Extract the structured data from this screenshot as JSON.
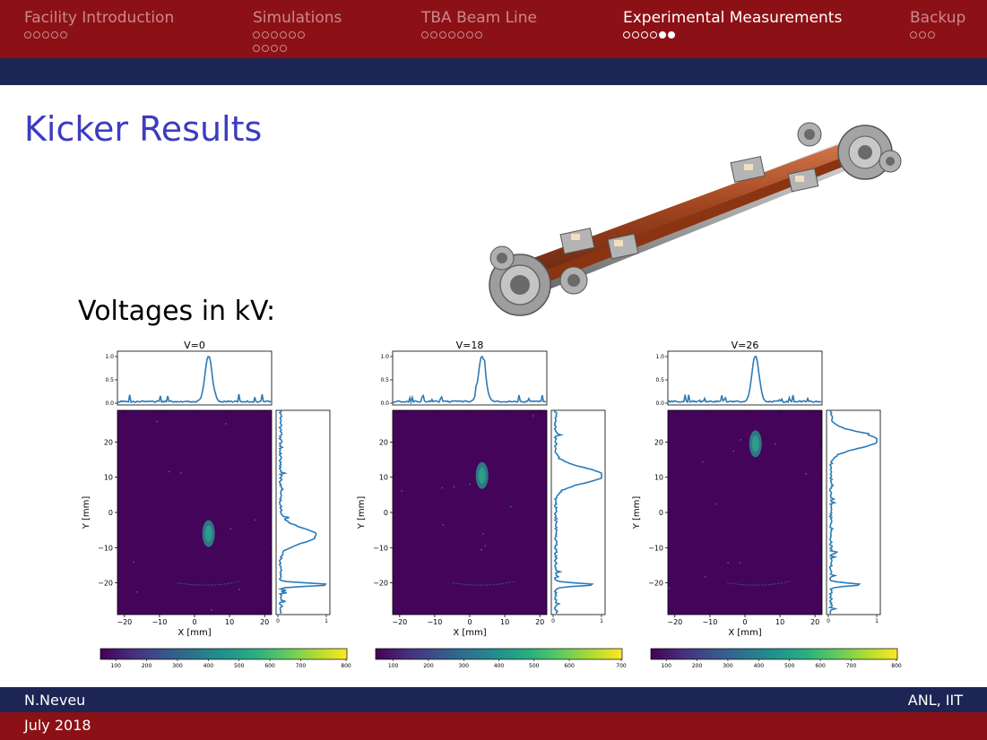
{
  "nav": [
    {
      "label": "Facility Introduction",
      "dots": [
        0,
        0,
        0,
        0,
        0
      ]
    },
    {
      "label": "Simulations",
      "dots": [
        0,
        0,
        0,
        0,
        0,
        0
      ],
      "dots2": [
        0,
        0,
        0,
        0
      ]
    },
    {
      "label": "TBA Beam Line",
      "dots": [
        0,
        0,
        0,
        0,
        0,
        0,
        0
      ]
    },
    {
      "label": "Experimental Measurements",
      "dots": [
        0,
        0,
        0,
        0,
        1,
        1
      ],
      "active": true
    },
    {
      "label": "Backup",
      "dots": [
        0,
        0,
        0
      ]
    }
  ],
  "slide_title": "Kicker Results",
  "voltages_label": "Voltages in kV:",
  "footer": {
    "author": "N.Neveu",
    "affiliation": "ANL, IIT",
    "date": "July 2018"
  },
  "colors": {
    "red": "#8c1116",
    "navy": "#1c2554",
    "title": "#3b3dbf",
    "trace": "#2b7bb9"
  },
  "chart_data": [
    {
      "type": "heatmap",
      "title": "V=0",
      "xlabel": "X [mm]",
      "ylabel": "Y [mm]",
      "xlim": [
        -22,
        22
      ],
      "ylim": [
        -29,
        29
      ],
      "xticks": [
        -20,
        -10,
        0,
        10,
        20
      ],
      "yticks": [
        -20,
        -10,
        0,
        10,
        20
      ],
      "beam_center": [
        4,
        -6
      ],
      "x_profile": {
        "yticks": [
          0.0,
          0.5,
          1.0
        ],
        "peak_x": 4,
        "peak": 1.0
      },
      "y_profile": {
        "xticks": [
          0,
          1
        ],
        "peaks": [
          {
            "y": -6.5,
            "v": 0.75
          },
          {
            "y": -20.5,
            "v": 1.0
          }
        ]
      },
      "colorbar": {
        "ticks": [
          100,
          200,
          300,
          400,
          500,
          600,
          700,
          800
        ]
      }
    },
    {
      "type": "heatmap",
      "title": "V=18",
      "xlabel": "X [mm]",
      "ylabel": "Y [mm]",
      "xlim": [
        -22,
        22
      ],
      "ylim": [
        -29,
        29
      ],
      "xticks": [
        -20,
        -10,
        0,
        10,
        20
      ],
      "yticks": [
        -20,
        -10,
        0,
        10,
        20
      ],
      "beam_center": [
        3.5,
        10.5
      ],
      "x_profile": {
        "yticks": [
          0.0,
          0.5,
          1.0
        ],
        "peak_x": 3.5,
        "peak": 1.0
      },
      "y_profile": {
        "xticks": [
          0,
          1
        ],
        "peaks": [
          {
            "y": 10.5,
            "v": 1.0
          },
          {
            "y": -20.5,
            "v": 0.7
          }
        ]
      },
      "colorbar": {
        "ticks": [
          100,
          200,
          300,
          400,
          500,
          600,
          700
        ]
      }
    },
    {
      "type": "heatmap",
      "title": "V=26",
      "xlabel": "X [mm]",
      "ylabel": "Y [mm]",
      "xlim": [
        -22,
        22
      ],
      "ylim": [
        -29,
        29
      ],
      "xticks": [
        -20,
        -10,
        0,
        10,
        20
      ],
      "yticks": [
        -20,
        -10,
        0,
        10,
        20
      ],
      "beam_center": [
        3,
        19.5
      ],
      "x_profile": {
        "yticks": [
          0.0,
          0.5,
          1.0
        ],
        "peak_x": 3,
        "peak": 1.0
      },
      "y_profile": {
        "xticks": [
          0,
          1
        ],
        "peaks": [
          {
            "y": 20.5,
            "v": 1.0
          },
          {
            "y": -20.5,
            "v": 0.6
          }
        ]
      },
      "colorbar": {
        "ticks": [
          100,
          200,
          300,
          400,
          500,
          600,
          700,
          800
        ]
      }
    }
  ]
}
